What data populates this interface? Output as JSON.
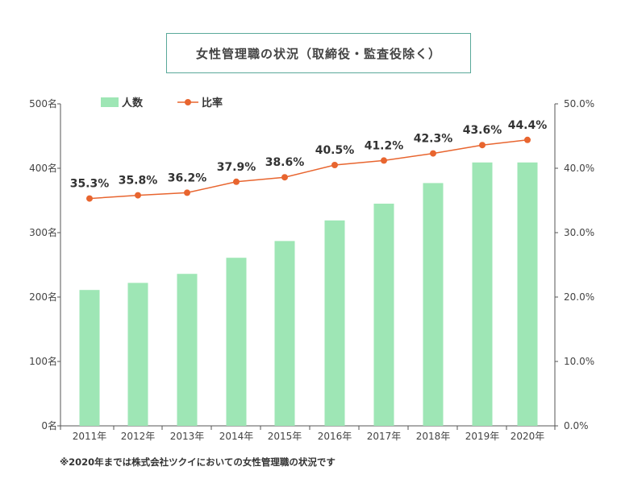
{
  "title": "女性管理職の状況（取締役・監査役除く）",
  "footnote": "※2020年までは株式会社ツクイにおいての女性管理職の状況です",
  "colors": {
    "bar": "#9ee6b5",
    "line": "#e8652f",
    "axis": "#555555",
    "text": "#333333",
    "title_border": "#5aa99a"
  },
  "chart_data": {
    "type": "bar+line",
    "categories": [
      "2011年",
      "2012年",
      "2013年",
      "2014年",
      "2015年",
      "2016年",
      "2017年",
      "2018年",
      "2019年",
      "2020年"
    ],
    "series": [
      {
        "name": "人数",
        "type": "bar",
        "axis": "left",
        "values": [
          211,
          222,
          236,
          261,
          287,
          319,
          345,
          377,
          409,
          409
        ]
      },
      {
        "name": "比率",
        "type": "line",
        "axis": "right",
        "values": [
          35.3,
          35.8,
          36.2,
          37.9,
          38.6,
          40.5,
          41.2,
          42.3,
          43.6,
          44.4
        ],
        "labels": [
          "35.3%",
          "35.8%",
          "36.2%",
          "37.9%",
          "38.6%",
          "40.5%",
          "41.2%",
          "42.3%",
          "43.6%",
          "44.4%"
        ]
      }
    ],
    "left_axis": {
      "ylim": [
        0,
        500
      ],
      "ticks": [
        0,
        100,
        200,
        300,
        400,
        500
      ],
      "tick_labels": [
        "0名",
        "100名",
        "200名",
        "300名",
        "400名",
        "500名"
      ]
    },
    "right_axis": {
      "ylim": [
        0,
        50
      ],
      "ticks": [
        0,
        10,
        20,
        30,
        40,
        50
      ],
      "tick_labels": [
        "0.0%",
        "10.0%",
        "20.0%",
        "30.0%",
        "40.0%",
        "50.0%"
      ]
    },
    "legend": {
      "position": "top-left",
      "items": [
        "人数",
        "比率"
      ]
    },
    "grid": false
  }
}
